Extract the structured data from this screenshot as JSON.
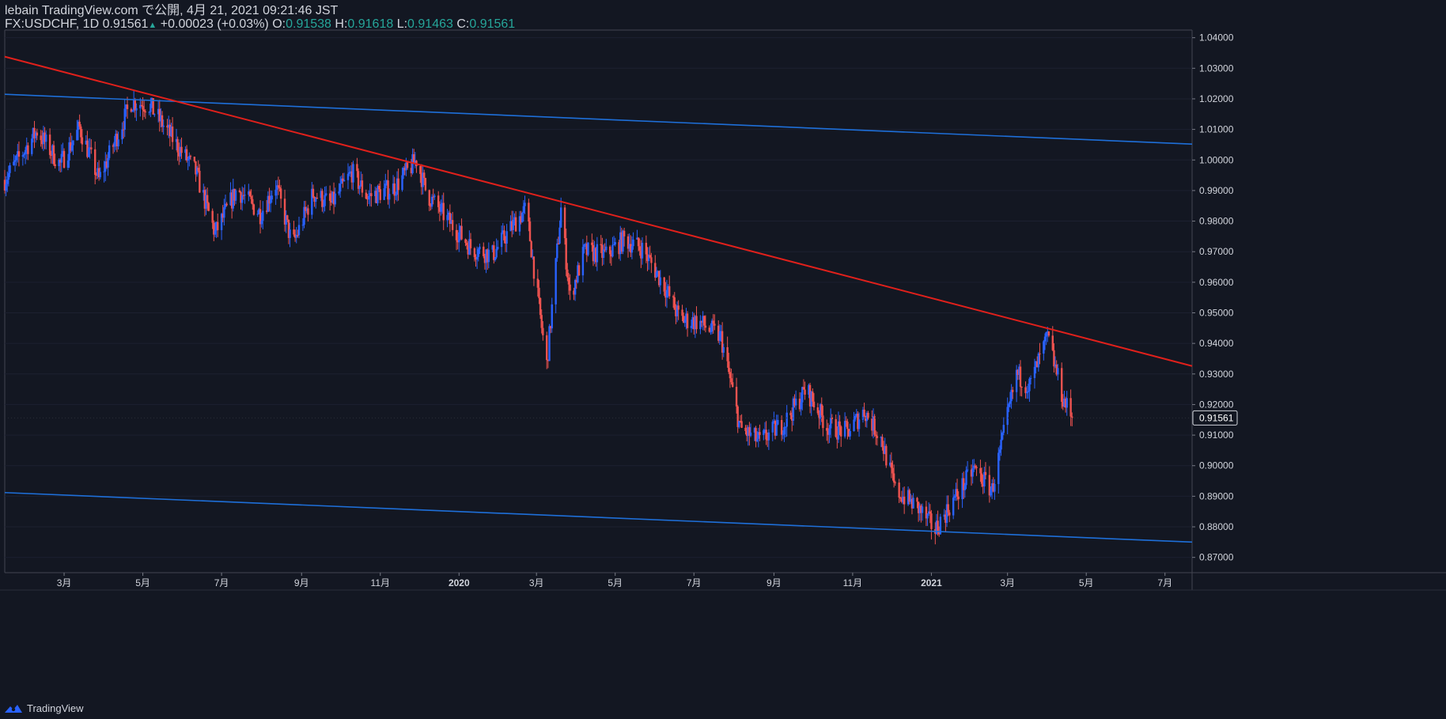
{
  "header": {
    "publisher": "lebain TradingView.com で公開, 4月 21, 2021 09:21:46 JST",
    "symbol": "FX:USDCHF, 1D",
    "last": "0.91561",
    "arrow": "▲",
    "change": "+0.00023 (+0.03%)",
    "o_label": "O:",
    "o_value": "0.91538",
    "h_label": "H:",
    "h_value": "0.91618",
    "l_label": "L:",
    "l_value": "0.91463",
    "c_label": "C:",
    "c_value": "0.91561"
  },
  "footer": {
    "brand": "TradingView"
  },
  "colors": {
    "background": "#131722",
    "up": "#2962ff",
    "down": "#ef5350",
    "trendline": "#e0201b",
    "channel": "#1e6fd9",
    "ohlc_value": "#26a69a"
  },
  "chart_data": {
    "type": "candlestick",
    "symbol": "FX:USDCHF",
    "interval": "1D",
    "ylim": [
      0.865,
      1.0425
    ],
    "yticks": [
      "1.04000",
      "1.03000",
      "1.02000",
      "1.01000",
      "1.00000",
      "0.99000",
      "0.98000",
      "0.97000",
      "0.96000",
      "0.95000",
      "0.94000",
      "0.93000",
      "0.92000",
      "0.91000",
      "0.90000",
      "0.89000",
      "0.88000",
      "0.87000"
    ],
    "xticks": [
      {
        "label": "3月",
        "date": "2019-03-01"
      },
      {
        "label": "5月",
        "date": "2019-05-01"
      },
      {
        "label": "7月",
        "date": "2019-07-01"
      },
      {
        "label": "9月",
        "date": "2019-09-01"
      },
      {
        "label": "11月",
        "date": "2019-11-01"
      },
      {
        "label": "2020",
        "date": "2020-01-01"
      },
      {
        "label": "3月",
        "date": "2020-03-01"
      },
      {
        "label": "5月",
        "date": "2020-05-01"
      },
      {
        "label": "7月",
        "date": "2020-07-01"
      },
      {
        "label": "9月",
        "date": "2020-09-01"
      },
      {
        "label": "11月",
        "date": "2020-11-01"
      },
      {
        "label": "2021",
        "date": "2021-01-01"
      },
      {
        "label": "3月",
        "date": "2021-03-01"
      },
      {
        "label": "5月",
        "date": "2021-05-01"
      },
      {
        "label": "7月",
        "date": "2021-07-01"
      }
    ],
    "x_range": [
      "2019-01-14",
      "2021-07-22"
    ],
    "last_price_label": "0.91561",
    "closes": [
      {
        "date": "2019-01-14",
        "close": 0.9935
      },
      {
        "date": "2019-02-08",
        "close": 1.0095
      },
      {
        "date": "2019-02-26",
        "close": 0.9985
      },
      {
        "date": "2019-03-13",
        "close": 1.0105
      },
      {
        "date": "2019-03-28",
        "close": 0.9935
      },
      {
        "date": "2019-04-22",
        "close": 1.019
      },
      {
        "date": "2019-05-06",
        "close": 1.018
      },
      {
        "date": "2019-05-24",
        "close": 1.007
      },
      {
        "date": "2019-06-11",
        "close": 0.996
      },
      {
        "date": "2019-06-26",
        "close": 0.976
      },
      {
        "date": "2019-07-13",
        "close": 0.9905
      },
      {
        "date": "2019-07-31",
        "close": 0.9825
      },
      {
        "date": "2019-08-12",
        "close": 0.992
      },
      {
        "date": "2019-08-25",
        "close": 0.972
      },
      {
        "date": "2019-09-10",
        "close": 0.989
      },
      {
        "date": "2019-09-24",
        "close": 0.9855
      },
      {
        "date": "2019-10-10",
        "close": 0.996
      },
      {
        "date": "2019-10-22",
        "close": 0.988
      },
      {
        "date": "2019-11-12",
        "close": 0.991
      },
      {
        "date": "2019-11-29",
        "close": 1.0
      },
      {
        "date": "2019-12-07",
        "close": 0.989
      },
      {
        "date": "2019-12-24",
        "close": 0.98
      },
      {
        "date": "2020-01-11",
        "close": 0.971
      },
      {
        "date": "2020-01-27",
        "close": 0.969
      },
      {
        "date": "2020-02-14",
        "close": 0.98
      },
      {
        "date": "2020-02-22",
        "close": 0.984
      },
      {
        "date": "2020-03-06",
        "close": 0.942
      },
      {
        "date": "2020-03-09",
        "close": 0.933
      },
      {
        "date": "2020-03-20",
        "close": 0.984
      },
      {
        "date": "2020-03-27",
        "close": 0.955
      },
      {
        "date": "2020-04-07",
        "close": 0.97
      },
      {
        "date": "2020-04-24",
        "close": 0.969
      },
      {
        "date": "2020-05-08",
        "close": 0.974
      },
      {
        "date": "2020-05-22",
        "close": 0.971
      },
      {
        "date": "2020-06-08",
        "close": 0.959
      },
      {
        "date": "2020-06-20",
        "close": 0.948
      },
      {
        "date": "2020-07-05",
        "close": 0.947
      },
      {
        "date": "2020-07-22",
        "close": 0.942
      },
      {
        "date": "2020-08-06",
        "close": 0.912
      },
      {
        "date": "2020-08-21",
        "close": 0.908
      },
      {
        "date": "2020-09-09",
        "close": 0.914
      },
      {
        "date": "2020-09-26",
        "close": 0.925
      },
      {
        "date": "2020-10-12",
        "close": 0.913
      },
      {
        "date": "2020-10-28",
        "close": 0.911
      },
      {
        "date": "2020-11-10",
        "close": 0.918
      },
      {
        "date": "2020-11-23",
        "close": 0.909
      },
      {
        "date": "2020-12-04",
        "close": 0.892
      },
      {
        "date": "2020-12-22",
        "close": 0.886
      },
      {
        "date": "2021-01-04",
        "close": 0.879
      },
      {
        "date": "2021-01-17",
        "close": 0.888
      },
      {
        "date": "2021-02-03",
        "close": 0.899
      },
      {
        "date": "2021-02-17",
        "close": 0.892
      },
      {
        "date": "2021-03-02",
        "close": 0.918
      },
      {
        "date": "2021-03-08",
        "close": 0.93
      },
      {
        "date": "2021-03-18",
        "close": 0.926
      },
      {
        "date": "2021-04-01",
        "close": 0.942
      },
      {
        "date": "2021-04-13",
        "close": 0.922
      },
      {
        "date": "2021-04-20",
        "close": 0.9156
      }
    ],
    "drawings": [
      {
        "name": "upper-channel-line",
        "kind": "trendline",
        "from": {
          "date": "2019-01-14",
          "price": 1.0215
        },
        "to": {
          "date": "2021-07-22",
          "price": 1.0052
        }
      },
      {
        "name": "lower-channel-line",
        "kind": "trendline",
        "from": {
          "date": "2019-01-14",
          "price": 0.8912
        },
        "to": {
          "date": "2021-07-22",
          "price": 0.875
        }
      },
      {
        "name": "downtrend-resistance-line",
        "kind": "trendline",
        "from": {
          "date": "2019-01-14",
          "price": 1.0338
        },
        "to": {
          "date": "2021-07-22",
          "price": 0.9326
        }
      }
    ]
  }
}
